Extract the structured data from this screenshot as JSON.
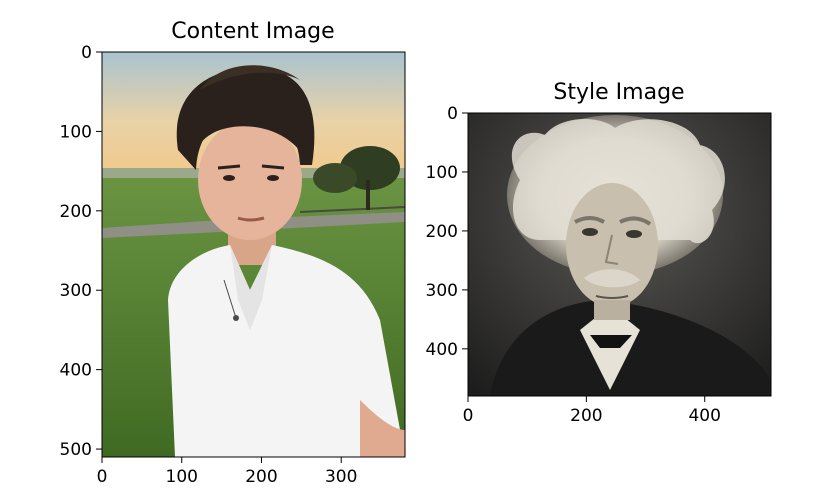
{
  "chart_data": [
    {
      "type": "image",
      "title": "Content Image",
      "image_description": "selfie of a young man with dark hair in a white shirt on a grassy field at sunset with trees",
      "xlim": [
        0,
        380
      ],
      "ylim": [
        0,
        510
      ],
      "y_inverted": true,
      "xticks": [
        0,
        100,
        200,
        300
      ],
      "yticks": [
        0,
        100,
        200,
        300,
        400,
        500
      ]
    },
    {
      "type": "image",
      "title": "Style Image",
      "image_description": "sepia-toned engraved portrait of an elderly man with wild white hair and a mustache wearing a dark coat",
      "xlim": [
        0,
        512
      ],
      "ylim": [
        0,
        480
      ],
      "y_inverted": true,
      "xticks": [
        0,
        200,
        400
      ],
      "yticks": [
        0,
        100,
        200,
        300,
        400
      ]
    }
  ],
  "colors": {
    "sky_top": "#a9c3cf",
    "sky_bottom": "#f3c98a",
    "grass": "#5e8a3a",
    "shirt": "#f4f4f4",
    "hair": "#2a211c",
    "skin": "#e6b49a",
    "style_bg": "#2b2b2b",
    "style_hair": "#e8e4dc"
  }
}
